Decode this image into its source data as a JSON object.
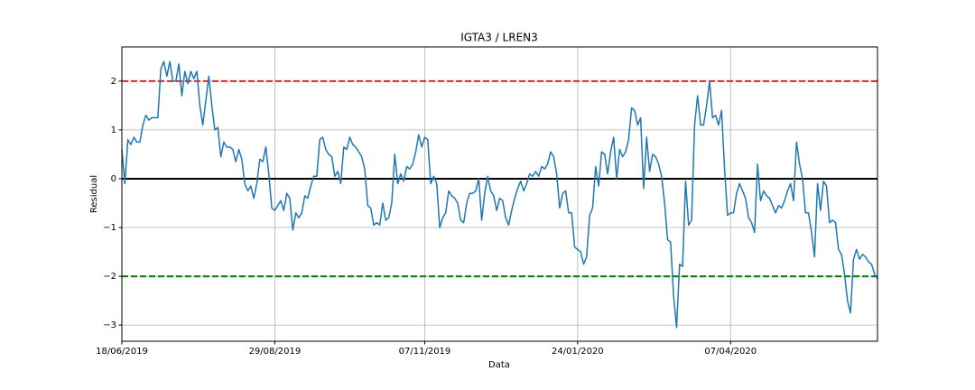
{
  "chart_data": {
    "type": "line",
    "title": "IGTA3 / LREN3",
    "x_label": "Data",
    "y_label": "Residual",
    "categories": [
      "18/06/2019",
      null,
      null,
      null,
      null,
      null,
      null,
      null,
      null,
      null,
      null,
      null,
      null,
      null,
      null,
      null,
      null,
      null,
      null,
      null,
      null,
      null,
      null,
      null,
      null,
      null,
      null,
      null,
      null,
      null,
      null,
      null,
      null,
      null,
      null,
      null,
      null,
      null,
      null,
      null,
      null,
      null,
      null,
      null,
      null,
      null,
      null,
      null,
      null,
      null,
      null,
      "29/08/2019",
      null,
      null,
      null,
      null,
      null,
      null,
      null,
      null,
      null,
      null,
      null,
      null,
      null,
      null,
      null,
      null,
      null,
      null,
      null,
      null,
      null,
      null,
      null,
      null,
      null,
      null,
      null,
      null,
      null,
      null,
      null,
      null,
      null,
      null,
      null,
      null,
      null,
      null,
      null,
      null,
      null,
      null,
      null,
      null,
      null,
      null,
      null,
      null,
      null,
      "07/11/2019",
      null,
      null,
      null,
      null,
      null,
      null,
      null,
      null,
      null,
      null,
      null,
      null,
      null,
      null,
      null,
      null,
      null,
      null,
      null,
      null,
      null,
      null,
      null,
      null,
      null,
      null,
      null,
      null,
      null,
      null,
      null,
      null,
      null,
      null,
      null,
      null,
      null,
      null,
      null,
      null,
      null,
      null,
      null,
      null,
      null,
      null,
      null,
      null,
      null,
      null,
      "24/01/2020",
      null,
      null,
      null,
      null,
      null,
      null,
      null,
      null,
      null,
      null,
      null,
      null,
      null,
      null,
      null,
      null,
      null,
      null,
      null,
      null,
      null,
      null,
      null,
      null,
      null,
      null,
      null,
      null,
      null,
      null,
      null,
      null,
      null,
      null,
      null,
      null,
      null,
      null,
      null,
      null,
      null,
      null,
      null,
      null,
      null,
      null,
      null,
      null,
      null,
      null,
      "07/04/2020",
      null,
      null,
      null,
      null,
      null,
      null,
      null,
      null,
      null,
      null,
      null,
      null,
      null,
      null,
      null,
      null,
      null,
      null,
      null,
      null,
      null,
      null,
      null,
      null,
      null,
      null,
      null,
      null,
      null,
      null,
      null,
      null,
      null,
      null,
      null,
      null,
      null,
      null,
      null,
      null,
      null,
      null,
      null,
      null,
      null,
      null,
      null,
      null,
      null
    ],
    "series": [
      {
        "color": "#1f77b4",
        "values": [
          0.6,
          -0.1,
          0.8,
          0.7,
          0.85,
          0.75,
          0.75,
          1.1,
          1.3,
          1.2,
          1.25,
          1.25,
          1.25,
          2.25,
          2.4,
          2.1,
          2.4,
          2.0,
          2.0,
          2.35,
          1.7,
          2.2,
          1.95,
          2.2,
          2.05,
          2.2,
          1.5,
          1.1,
          1.6,
          2.1,
          1.5,
          1.0,
          1.05,
          0.45,
          0.75,
          0.65,
          0.65,
          0.6,
          0.35,
          0.6,
          0.4,
          -0.1,
          -0.25,
          -0.15,
          -0.4,
          -0.1,
          0.4,
          0.35,
          0.65,
          0.1,
          -0.6,
          -0.65,
          -0.55,
          -0.45,
          -0.65,
          -0.3,
          -0.4,
          -1.05,
          -0.7,
          -0.8,
          -0.7,
          -0.35,
          -0.4,
          -0.15,
          0.05,
          0.05,
          0.8,
          0.85,
          0.6,
          0.5,
          0.45,
          0.05,
          0.15,
          -0.1,
          0.65,
          0.6,
          0.85,
          0.7,
          0.65,
          0.55,
          0.45,
          0.2,
          -0.55,
          -0.6,
          -0.95,
          -0.9,
          -0.95,
          -0.5,
          -0.85,
          -0.8,
          -0.5,
          0.5,
          -0.1,
          0.1,
          -0.05,
          0.25,
          0.2,
          0.3,
          0.55,
          0.9,
          0.65,
          0.85,
          0.8,
          -0.1,
          0.05,
          -0.1,
          -1.0,
          -0.8,
          -0.7,
          -0.25,
          -0.35,
          -0.4,
          -0.5,
          -0.85,
          -0.9,
          -0.5,
          -0.3,
          -0.3,
          -0.25,
          0.0,
          -0.85,
          -0.3,
          0.05,
          -0.25,
          -0.35,
          -0.65,
          -0.4,
          -0.45,
          -0.8,
          -0.95,
          -0.65,
          -0.4,
          -0.2,
          -0.05,
          -0.25,
          -0.1,
          0.1,
          0.05,
          0.15,
          0.05,
          0.25,
          0.2,
          0.3,
          0.55,
          0.45,
          0.1,
          -0.6,
          -0.3,
          -0.25,
          -0.7,
          -0.7,
          -1.4,
          -1.45,
          -1.5,
          -1.75,
          -1.6,
          -0.75,
          -0.6,
          0.25,
          -0.15,
          0.55,
          0.5,
          0.1,
          0.55,
          0.85,
          0.0,
          0.6,
          0.45,
          0.55,
          0.8,
          1.45,
          1.4,
          1.1,
          1.25,
          -0.2,
          0.85,
          0.15,
          0.5,
          0.45,
          0.3,
          0.05,
          -0.5,
          -1.25,
          -1.3,
          -2.4,
          -3.05,
          -1.75,
          -1.8,
          -0.05,
          -0.95,
          -0.85,
          1.1,
          1.7,
          1.1,
          1.1,
          1.5,
          2.0,
          1.25,
          1.3,
          1.1,
          1.4,
          0.2,
          -0.75,
          -0.7,
          -0.7,
          -0.3,
          -0.1,
          -0.25,
          -0.4,
          -0.8,
          -0.9,
          -1.1,
          0.3,
          -0.45,
          -0.25,
          -0.35,
          -0.4,
          -0.55,
          -0.7,
          -0.55,
          -0.6,
          -0.45,
          -0.25,
          -0.1,
          -0.45,
          0.75,
          0.3,
          0.0,
          -0.7,
          -0.7,
          -1.1,
          -1.6,
          -0.1,
          -0.65,
          -0.05,
          -0.15,
          -0.9,
          -0.85,
          -0.9,
          -1.45,
          -1.55,
          -1.95,
          -2.5,
          -2.75,
          -1.65,
          -1.45,
          -1.65,
          -1.55,
          -1.6,
          -1.7,
          -1.75,
          -1.95,
          -2.05
        ]
      }
    ],
    "hlines": [
      {
        "value": 2,
        "color": "#d62728",
        "dashed": true
      },
      {
        "value": 0,
        "color": "#000000",
        "dashed": false
      },
      {
        "value": -2,
        "color": "#007a00",
        "dashed": true
      }
    ],
    "ylim": [
      -3.33,
      2.7
    ],
    "yticks": [
      {
        "value": -3,
        "label": "−3"
      },
      {
        "value": -2,
        "label": "−2"
      },
      {
        "value": -1,
        "label": "−1"
      },
      0,
      1,
      2
    ],
    "grid": true
  }
}
